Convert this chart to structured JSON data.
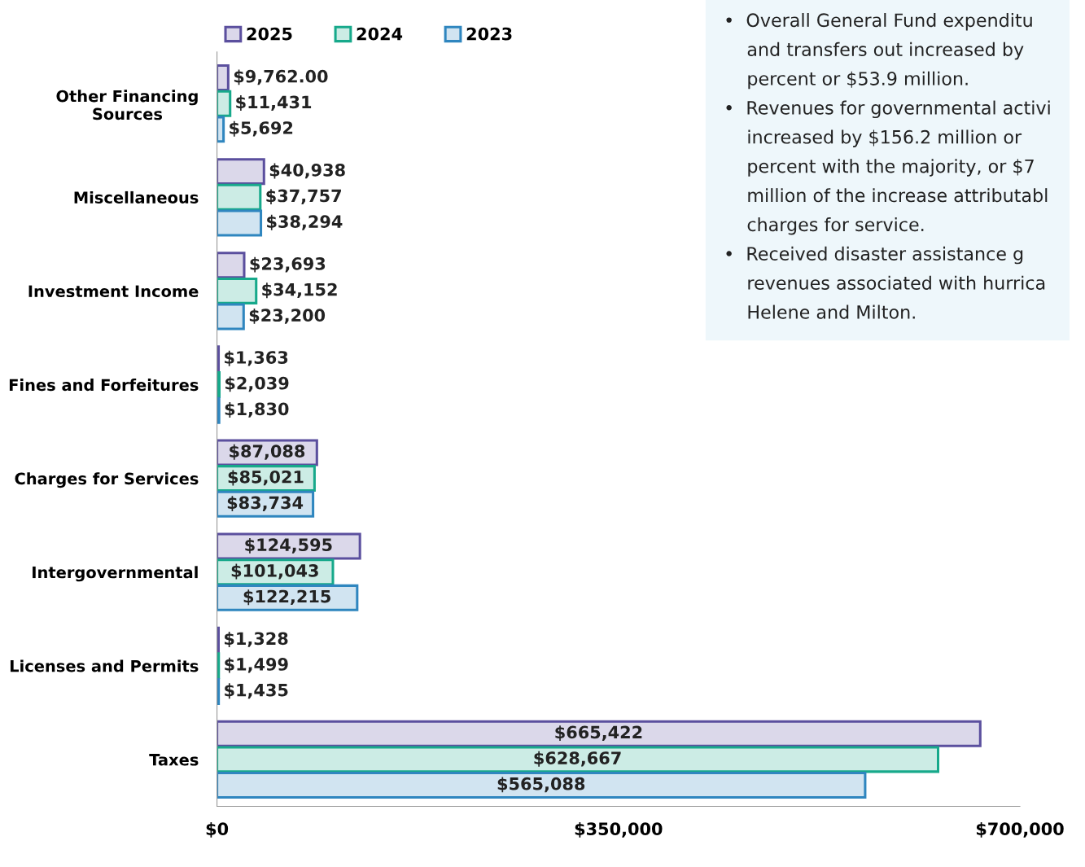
{
  "chart_data": {
    "type": "bar",
    "orientation": "horizontal",
    "categories": [
      "Other Financing Sources",
      "Miscellaneous",
      "Investment Income",
      "Fines and Forfeitures",
      "Charges for Services",
      "Intergovernmental",
      "Licenses and Permits",
      "Taxes"
    ],
    "series": [
      {
        "name": "2025",
        "color": "#5b4f9e",
        "values": [
          9762,
          40938,
          23693,
          1363,
          87088,
          124595,
          1328,
          665422
        ],
        "value_labels": [
          "$9,762.00",
          "$40,938",
          "$23,693",
          "$1,363",
          "$87,088",
          "$124,595",
          "$1,328",
          "$665,422"
        ]
      },
      {
        "name": "2024",
        "color": "#17a98b",
        "values": [
          11431,
          37757,
          34152,
          2039,
          85021,
          101043,
          1499,
          628667
        ],
        "value_labels": [
          "$11,431",
          "$37,757",
          "$34,152",
          "$2,039",
          "$85,021",
          "$101,043",
          "$1,499",
          "$628,667"
        ]
      },
      {
        "name": "2023",
        "color": "#2f86bf",
        "values": [
          5692,
          38294,
          23200,
          1830,
          83734,
          122215,
          1435,
          565088
        ],
        "value_labels": [
          "$5,692",
          "$38,294",
          "$23,200",
          "$1,830",
          "$83,734",
          "$122,215",
          "$1,435",
          "$565,088"
        ]
      }
    ],
    "xlim": [
      0,
      700000
    ],
    "xticks": [
      {
        "value": 0,
        "label": "$0"
      },
      {
        "value": 350000,
        "label": "$350,000"
      },
      {
        "value": 700000,
        "label": "$700,000"
      }
    ],
    "legend": "top left",
    "grid": false,
    "annotations": [
      "•  Overall General Fund expenditu\n    and transfers out increased by\n    percent or $53.9 million.\n•  Revenues for governmental activi\n    increased by $156.2 million or\n    percent with the majority, or $7\n    million of the increase attributabl\n    charges for service.\n•  Received disaster assistance g\n    revenues associated with hurrica\n    Helene and Milton."
    ]
  }
}
